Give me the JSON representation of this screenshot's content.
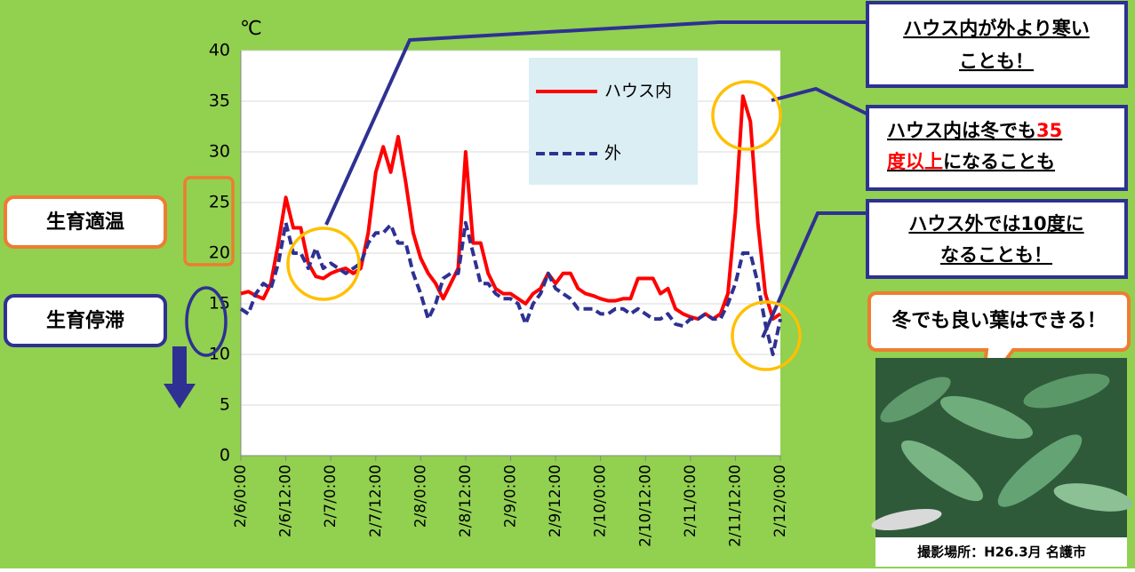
{
  "chart_data": {
    "type": "line",
    "unit": "℃",
    "categories": [
      "2/6/0:00",
      null,
      null,
      null,
      null,
      null,
      "2/6/12:00",
      null,
      null,
      null,
      null,
      null,
      "2/7/0:00",
      null,
      null,
      null,
      null,
      null,
      "2/7/12:00",
      null,
      null,
      null,
      null,
      null,
      "2/8/0:00",
      null,
      null,
      null,
      null,
      null,
      "2/8/12:00",
      null,
      null,
      null,
      null,
      null,
      "2/9/0:00",
      null,
      null,
      null,
      null,
      null,
      "2/9/12:00",
      null,
      null,
      null,
      null,
      null,
      "2/10/0:00",
      null,
      null,
      null,
      null,
      null,
      "2/10/12:00",
      null,
      null,
      null,
      null,
      null,
      "2/11/0:00",
      null,
      null,
      null,
      null,
      null,
      "2/11/12:00",
      null,
      null,
      null,
      null,
      null,
      "2/12/0:00"
    ],
    "series": [
      {
        "name": "ハウス内",
        "color": "#ff0000",
        "dash": false,
        "values": [
          16,
          16.2,
          15.8,
          15.5,
          17,
          21,
          25.5,
          22.5,
          22.5,
          19,
          17.7,
          17.5,
          18,
          18.3,
          18.5,
          18,
          18.5,
          22,
          28,
          30.5,
          28,
          31.5,
          27,
          22,
          19.5,
          18,
          17,
          15.5,
          17,
          18.5,
          30,
          21,
          21,
          18,
          16.5,
          16,
          16,
          15.5,
          15,
          16,
          16.5,
          18,
          17,
          18,
          18,
          16.5,
          16,
          15.8,
          15.5,
          15.3,
          15.3,
          15.5,
          15.5,
          17.5,
          17.5,
          17.5,
          16,
          16.5,
          14.5,
          14,
          13.7,
          13.5,
          14,
          13.5,
          14,
          16,
          24,
          35.5,
          33,
          23,
          16,
          13.5,
          14
        ]
      },
      {
        "name": "外",
        "color": "#2e3192",
        "dash": true,
        "values": [
          14.5,
          14,
          16,
          17,
          16.5,
          19,
          23,
          20,
          20,
          18.5,
          20.5,
          18.5,
          19,
          18.5,
          18,
          18.5,
          19,
          21,
          22,
          22,
          22.8,
          21,
          21,
          18,
          16,
          13.5,
          15,
          17.5,
          18,
          18,
          23,
          20,
          17,
          17,
          16,
          15.5,
          15.5,
          15,
          13,
          15,
          16,
          18,
          16.5,
          16,
          15.5,
          14.5,
          14.5,
          14.5,
          14,
          14,
          14.5,
          14.5,
          14,
          14.5,
          14,
          13.5,
          13.5,
          14,
          13,
          12.8,
          13.5,
          13.5,
          14,
          13.5,
          13.5,
          15,
          17,
          20,
          20,
          17,
          13,
          10,
          13.5
        ]
      }
    ],
    "ylim": [
      0,
      40
    ],
    "yticks": [
      0,
      5,
      10,
      15,
      20,
      25,
      30,
      35,
      40
    ],
    "grid": true
  },
  "labels": {
    "optimal": "生育適温",
    "stagnation": "生育停滞"
  },
  "callouts": [
    {
      "lines": [
        "ハウス内が外より寒い",
        "ことも！"
      ]
    },
    {
      "segments": [
        "ハウス内は冬でも",
        "35",
        "度以上",
        "になることも"
      ]
    },
    {
      "lines": [
        "ハウス外では10度に",
        "なることも！"
      ]
    }
  ],
  "bubble": "冬でも良い葉はできる！",
  "photo_caption": "撮影場所：H26.3月 名護市"
}
